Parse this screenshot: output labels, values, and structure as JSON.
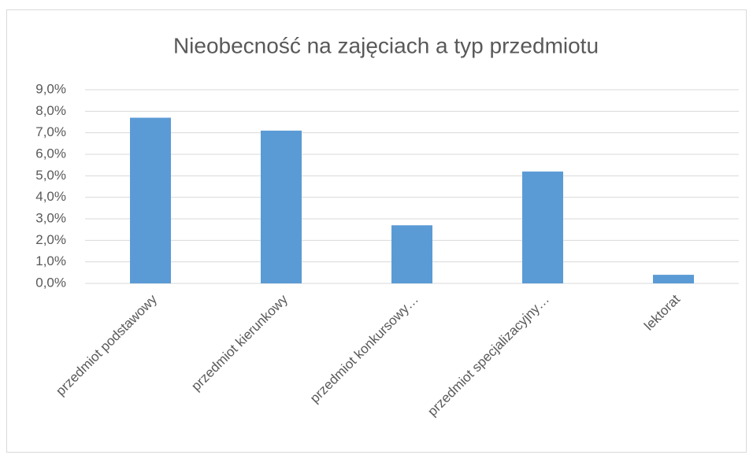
{
  "chart_data": {
    "type": "bar",
    "title": "Nieobecność na zajęciach a typ przedmiotu",
    "categories": [
      "przedmiot podstawowy",
      "przedmiot kierunkowy",
      "przedmiot konkursowy…",
      "przedmiot specjalizacyjny…",
      "lektorat"
    ],
    "values": [
      7.7,
      7.1,
      2.7,
      5.2,
      0.4
    ],
    "color": "#5b9bd5",
    "ylim": [
      0,
      9
    ],
    "yticks": [
      {
        "value": 0,
        "label": "0,0%"
      },
      {
        "value": 1,
        "label": "1,0%"
      },
      {
        "value": 2,
        "label": "2,0%"
      },
      {
        "value": 3,
        "label": "3,0%"
      },
      {
        "value": 4,
        "label": "4,0%"
      },
      {
        "value": 5,
        "label": "5,0%"
      },
      {
        "value": 6,
        "label": "6,0%"
      },
      {
        "value": 7,
        "label": "7,0%"
      },
      {
        "value": 8,
        "label": "8,0%"
      },
      {
        "value": 9,
        "label": "9,0%"
      }
    ],
    "grid": true
  }
}
